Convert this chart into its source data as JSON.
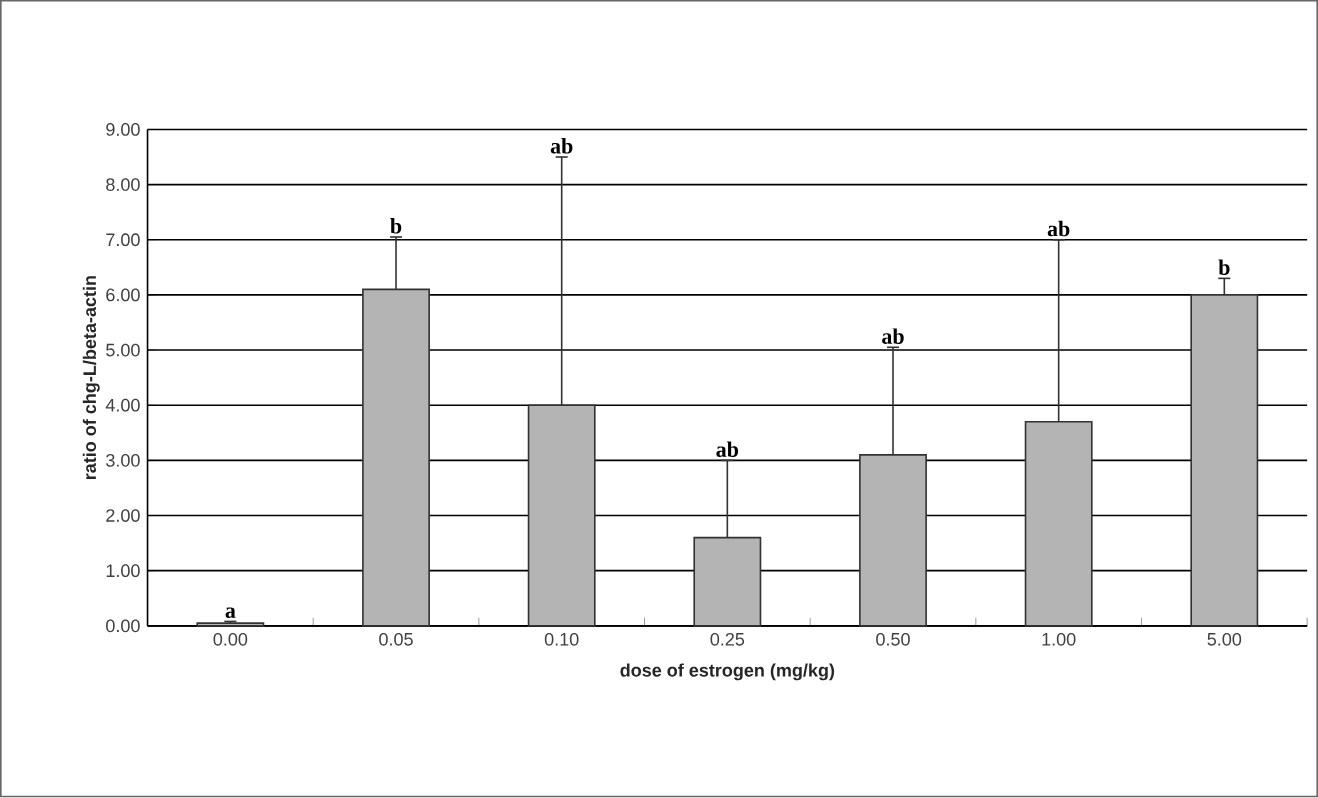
{
  "chart_data": {
    "type": "bar",
    "xlabel": "dose of estrogen (mg/kg)",
    "ylabel": "ratio of chg-L/beta-actin",
    "categories": [
      "0.00",
      "0.05",
      "0.10",
      "0.25",
      "0.50",
      "1.00",
      "5.00"
    ],
    "values": [
      0.05,
      6.1,
      4.0,
      1.6,
      3.1,
      3.7,
      6.0
    ],
    "errors": [
      [
        0.05,
        0.08
      ],
      [
        6.1,
        7.05
      ],
      [
        4.0,
        8.5
      ],
      [
        1.6,
        3.0
      ],
      [
        3.1,
        5.05
      ],
      [
        3.7,
        7.0
      ],
      [
        6.0,
        6.3
      ]
    ],
    "color": "#b4b4b4",
    "ylim": [
      0,
      9
    ],
    "yticks": [
      {
        "value": 0,
        "label": "0.00"
      },
      {
        "value": 1,
        "label": "1.00"
      },
      {
        "value": 2,
        "label": "2.00"
      },
      {
        "value": 3,
        "label": "3.00"
      },
      {
        "value": 4,
        "label": "4.00"
      },
      {
        "value": 5,
        "label": "5.00"
      },
      {
        "value": 6,
        "label": "6.00"
      },
      {
        "value": 7,
        "label": "7.00"
      },
      {
        "value": 8,
        "label": "8.00"
      },
      {
        "value": 9,
        "label": "9.00"
      }
    ],
    "grid": "y",
    "annotations": [
      {
        "text": "a",
        "x": "0.00",
        "y": 0.08
      },
      {
        "text": "b",
        "x": "0.05",
        "y": 7.05
      },
      {
        "text": "ab",
        "x": "0.10",
        "y": 8.5
      },
      {
        "text": "ab",
        "x": "0.25",
        "y": 3.0
      },
      {
        "text": "ab",
        "x": "0.50",
        "y": 5.05
      },
      {
        "text": "ab",
        "x": "1.00",
        "y": 7.0
      },
      {
        "text": "b",
        "x": "5.00",
        "y": 6.3
      }
    ]
  }
}
